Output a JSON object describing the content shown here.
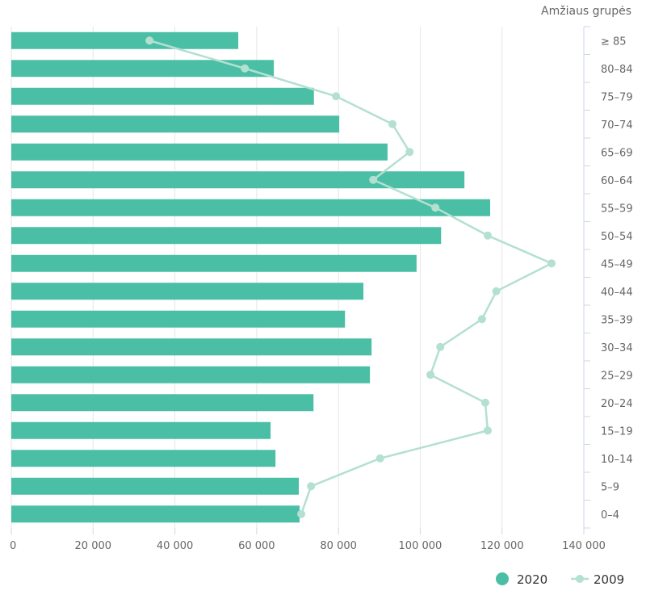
{
  "chart_data": {
    "type": "bar",
    "orientation": "horizontal",
    "title": "",
    "category_axis_title": "Amžiaus grupės",
    "categories": [
      "≥ 85",
      "80–84",
      "75–79",
      "70–74",
      "65–69",
      "60–64",
      "55–59",
      "50–54",
      "45–49",
      "40–44",
      "35–39",
      "30–34",
      "25–29",
      "20–24",
      "15–19",
      "10–14",
      "5–9",
      "0–4"
    ],
    "series": [
      {
        "name": "2020",
        "type": "bar",
        "color": "#4bbfa6",
        "values": [
          55500,
          64200,
          74000,
          80200,
          92000,
          110800,
          117100,
          105100,
          99100,
          86100,
          81600,
          88100,
          87700,
          73900,
          63400,
          64600,
          70300,
          70500
        ]
      },
      {
        "name": "2009",
        "type": "line",
        "color": "#b3e0d0",
        "values": [
          33800,
          57100,
          79400,
          93200,
          97400,
          88500,
          103700,
          116500,
          132100,
          118600,
          115100,
          104900,
          102500,
          115900,
          116500,
          90200,
          73300,
          70900
        ]
      }
    ],
    "xlim": [
      0,
      140000
    ],
    "xticks": [
      0,
      20000,
      40000,
      60000,
      80000,
      100000,
      120000,
      140000
    ],
    "xtick_labels": [
      "0",
      "20 000",
      "40 000",
      "60 000",
      "80 000",
      "100 000",
      "120 000",
      "140 000"
    ],
    "grid": true,
    "legend": {
      "placement": "bottom-right",
      "items": [
        "2020",
        "2009"
      ]
    }
  }
}
